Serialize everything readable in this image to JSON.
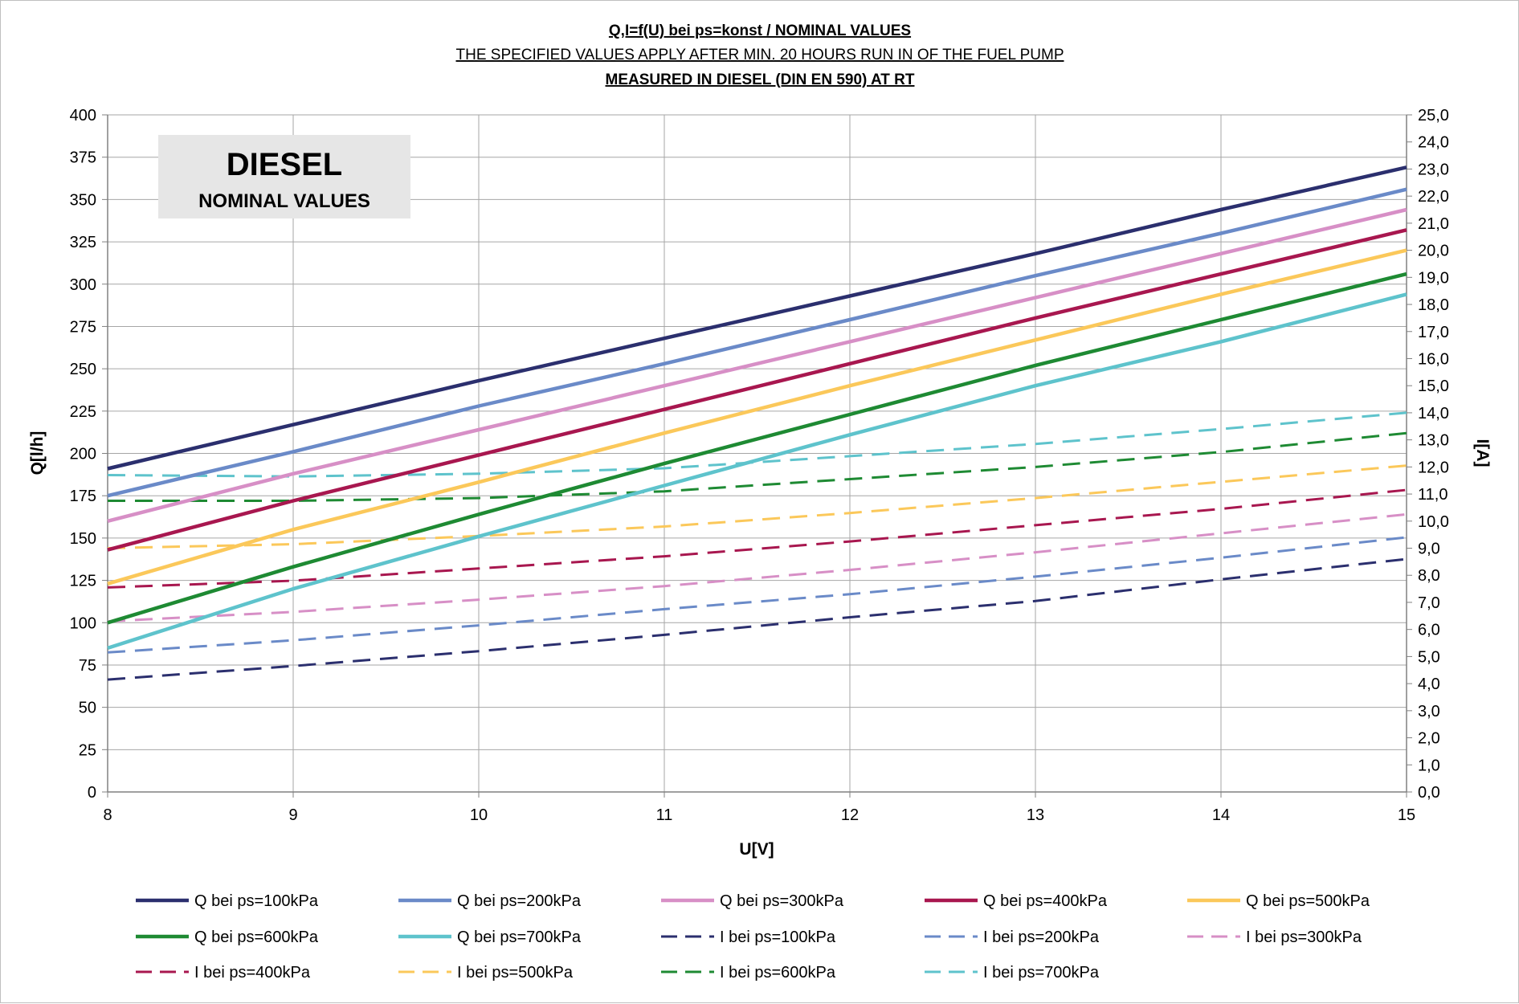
{
  "chart_data": {
    "type": "line",
    "title": "Q,I=f(U) bei ps=konst / NOMINAL VALUES",
    "subtitle": "THE SPECIFIED VALUES APPLY AFTER MIN. 20 HOURS RUN IN OF THE FUEL PUMP",
    "subtitle2": "MEASURED IN DIESEL (DIN EN 590) AT RT",
    "xlabel": "U[V]",
    "ylabel": "Q[l/h]",
    "y2label": "I[A]",
    "xlim": [
      8,
      15
    ],
    "ylim": [
      0,
      400
    ],
    "y2lim": [
      0,
      25
    ],
    "x_ticks": [
      "8",
      "9",
      "10",
      "11",
      "12",
      "13",
      "14",
      "15"
    ],
    "y_ticks": [
      "0",
      "25",
      "50",
      "75",
      "100",
      "125",
      "150",
      "175",
      "200",
      "225",
      "250",
      "275",
      "300",
      "325",
      "350",
      "375",
      "400"
    ],
    "y2_ticks": [
      "0,0",
      "1,0",
      "2,0",
      "3,0",
      "4,0",
      "5,0",
      "6,0",
      "7,0",
      "8,0",
      "9,0",
      "10,0",
      "11,0",
      "12,0",
      "13,0",
      "14,0",
      "15,0",
      "16,0",
      "17,0",
      "18,0",
      "19,0",
      "20,0",
      "21,0",
      "22,0",
      "23,0",
      "24,0",
      "25,0"
    ],
    "grid": true,
    "legend_position": "bottom",
    "annotation": {
      "line1": "DIESEL",
      "line2": "NOMINAL VALUES"
    },
    "x": [
      8,
      9,
      10,
      11,
      12,
      13,
      14,
      15
    ],
    "series": [
      {
        "name": "Q  bei ps=100kPa",
        "axis": "left",
        "style": "solid",
        "color": "#2b2f6e",
        "values": [
          191,
          217,
          243,
          268,
          293,
          318,
          344,
          369
        ]
      },
      {
        "name": "Q  bei ps=200kPa",
        "axis": "left",
        "style": "solid",
        "color": "#6a8ac8",
        "values": [
          175,
          201,
          228,
          253,
          279,
          305,
          330,
          356
        ]
      },
      {
        "name": "Q  bei ps=300kPa",
        "axis": "left",
        "style": "solid",
        "color": "#d78fc6",
        "values": [
          160,
          188,
          214,
          240,
          266,
          292,
          318,
          344
        ]
      },
      {
        "name": "Q  bei ps=400kPa",
        "axis": "left",
        "style": "solid",
        "color": "#a8174f",
        "values": [
          143,
          172,
          199,
          226,
          253,
          280,
          306,
          332
        ]
      },
      {
        "name": "Q  bei ps=500kPa",
        "axis": "left",
        "style": "solid",
        "color": "#fbc85a",
        "values": [
          123,
          155,
          183,
          212,
          240,
          267,
          294,
          320
        ]
      },
      {
        "name": "Q  bei ps=600kPa",
        "axis": "left",
        "style": "solid",
        "color": "#1e8a33",
        "values": [
          100,
          133,
          164,
          194,
          223,
          252,
          279,
          306
        ]
      },
      {
        "name": "Q  bei ps=700kPa",
        "axis": "left",
        "style": "solid",
        "color": "#5ec3cc",
        "values": [
          85,
          120,
          151,
          181,
          211,
          240,
          266,
          294
        ]
      },
      {
        "name": "I  bei ps=100kPa",
        "axis": "right",
        "style": "dashed",
        "color": "#2b2f6e",
        "values": [
          4.15,
          4.65,
          5.2,
          5.8,
          6.45,
          7.05,
          7.85,
          8.6
        ]
      },
      {
        "name": "I  bei ps=200kPa",
        "axis": "right",
        "style": "dashed",
        "color": "#6a8ac8",
        "values": [
          5.15,
          5.6,
          6.15,
          6.75,
          7.3,
          7.95,
          8.65,
          9.4
        ]
      },
      {
        "name": "I  bei ps=300kPa",
        "axis": "right",
        "style": "dashed",
        "color": "#d78fc6",
        "values": [
          6.3,
          6.65,
          7.1,
          7.6,
          8.2,
          8.85,
          9.55,
          10.25
        ]
      },
      {
        "name": "I  bei ps=400kPa",
        "axis": "right",
        "style": "dashed",
        "color": "#a8174f",
        "values": [
          7.55,
          7.8,
          8.25,
          8.7,
          9.25,
          9.85,
          10.45,
          11.15
        ]
      },
      {
        "name": "I  bei ps=500kPa",
        "axis": "right",
        "style": "dashed",
        "color": "#fbc85a",
        "values": [
          9.0,
          9.15,
          9.45,
          9.8,
          10.3,
          10.85,
          11.45,
          12.05
        ]
      },
      {
        "name": "I  bei ps=600kPa",
        "axis": "right",
        "style": "dashed",
        "color": "#1e8a33",
        "values": [
          10.75,
          10.75,
          10.85,
          11.1,
          11.55,
          12.0,
          12.55,
          13.25
        ]
      },
      {
        "name": "I  bei ps=700kPa",
        "axis": "right",
        "style": "dashed",
        "color": "#5ec3cc",
        "values": [
          11.7,
          11.65,
          11.75,
          11.95,
          12.4,
          12.85,
          13.4,
          14.0
        ]
      }
    ]
  }
}
